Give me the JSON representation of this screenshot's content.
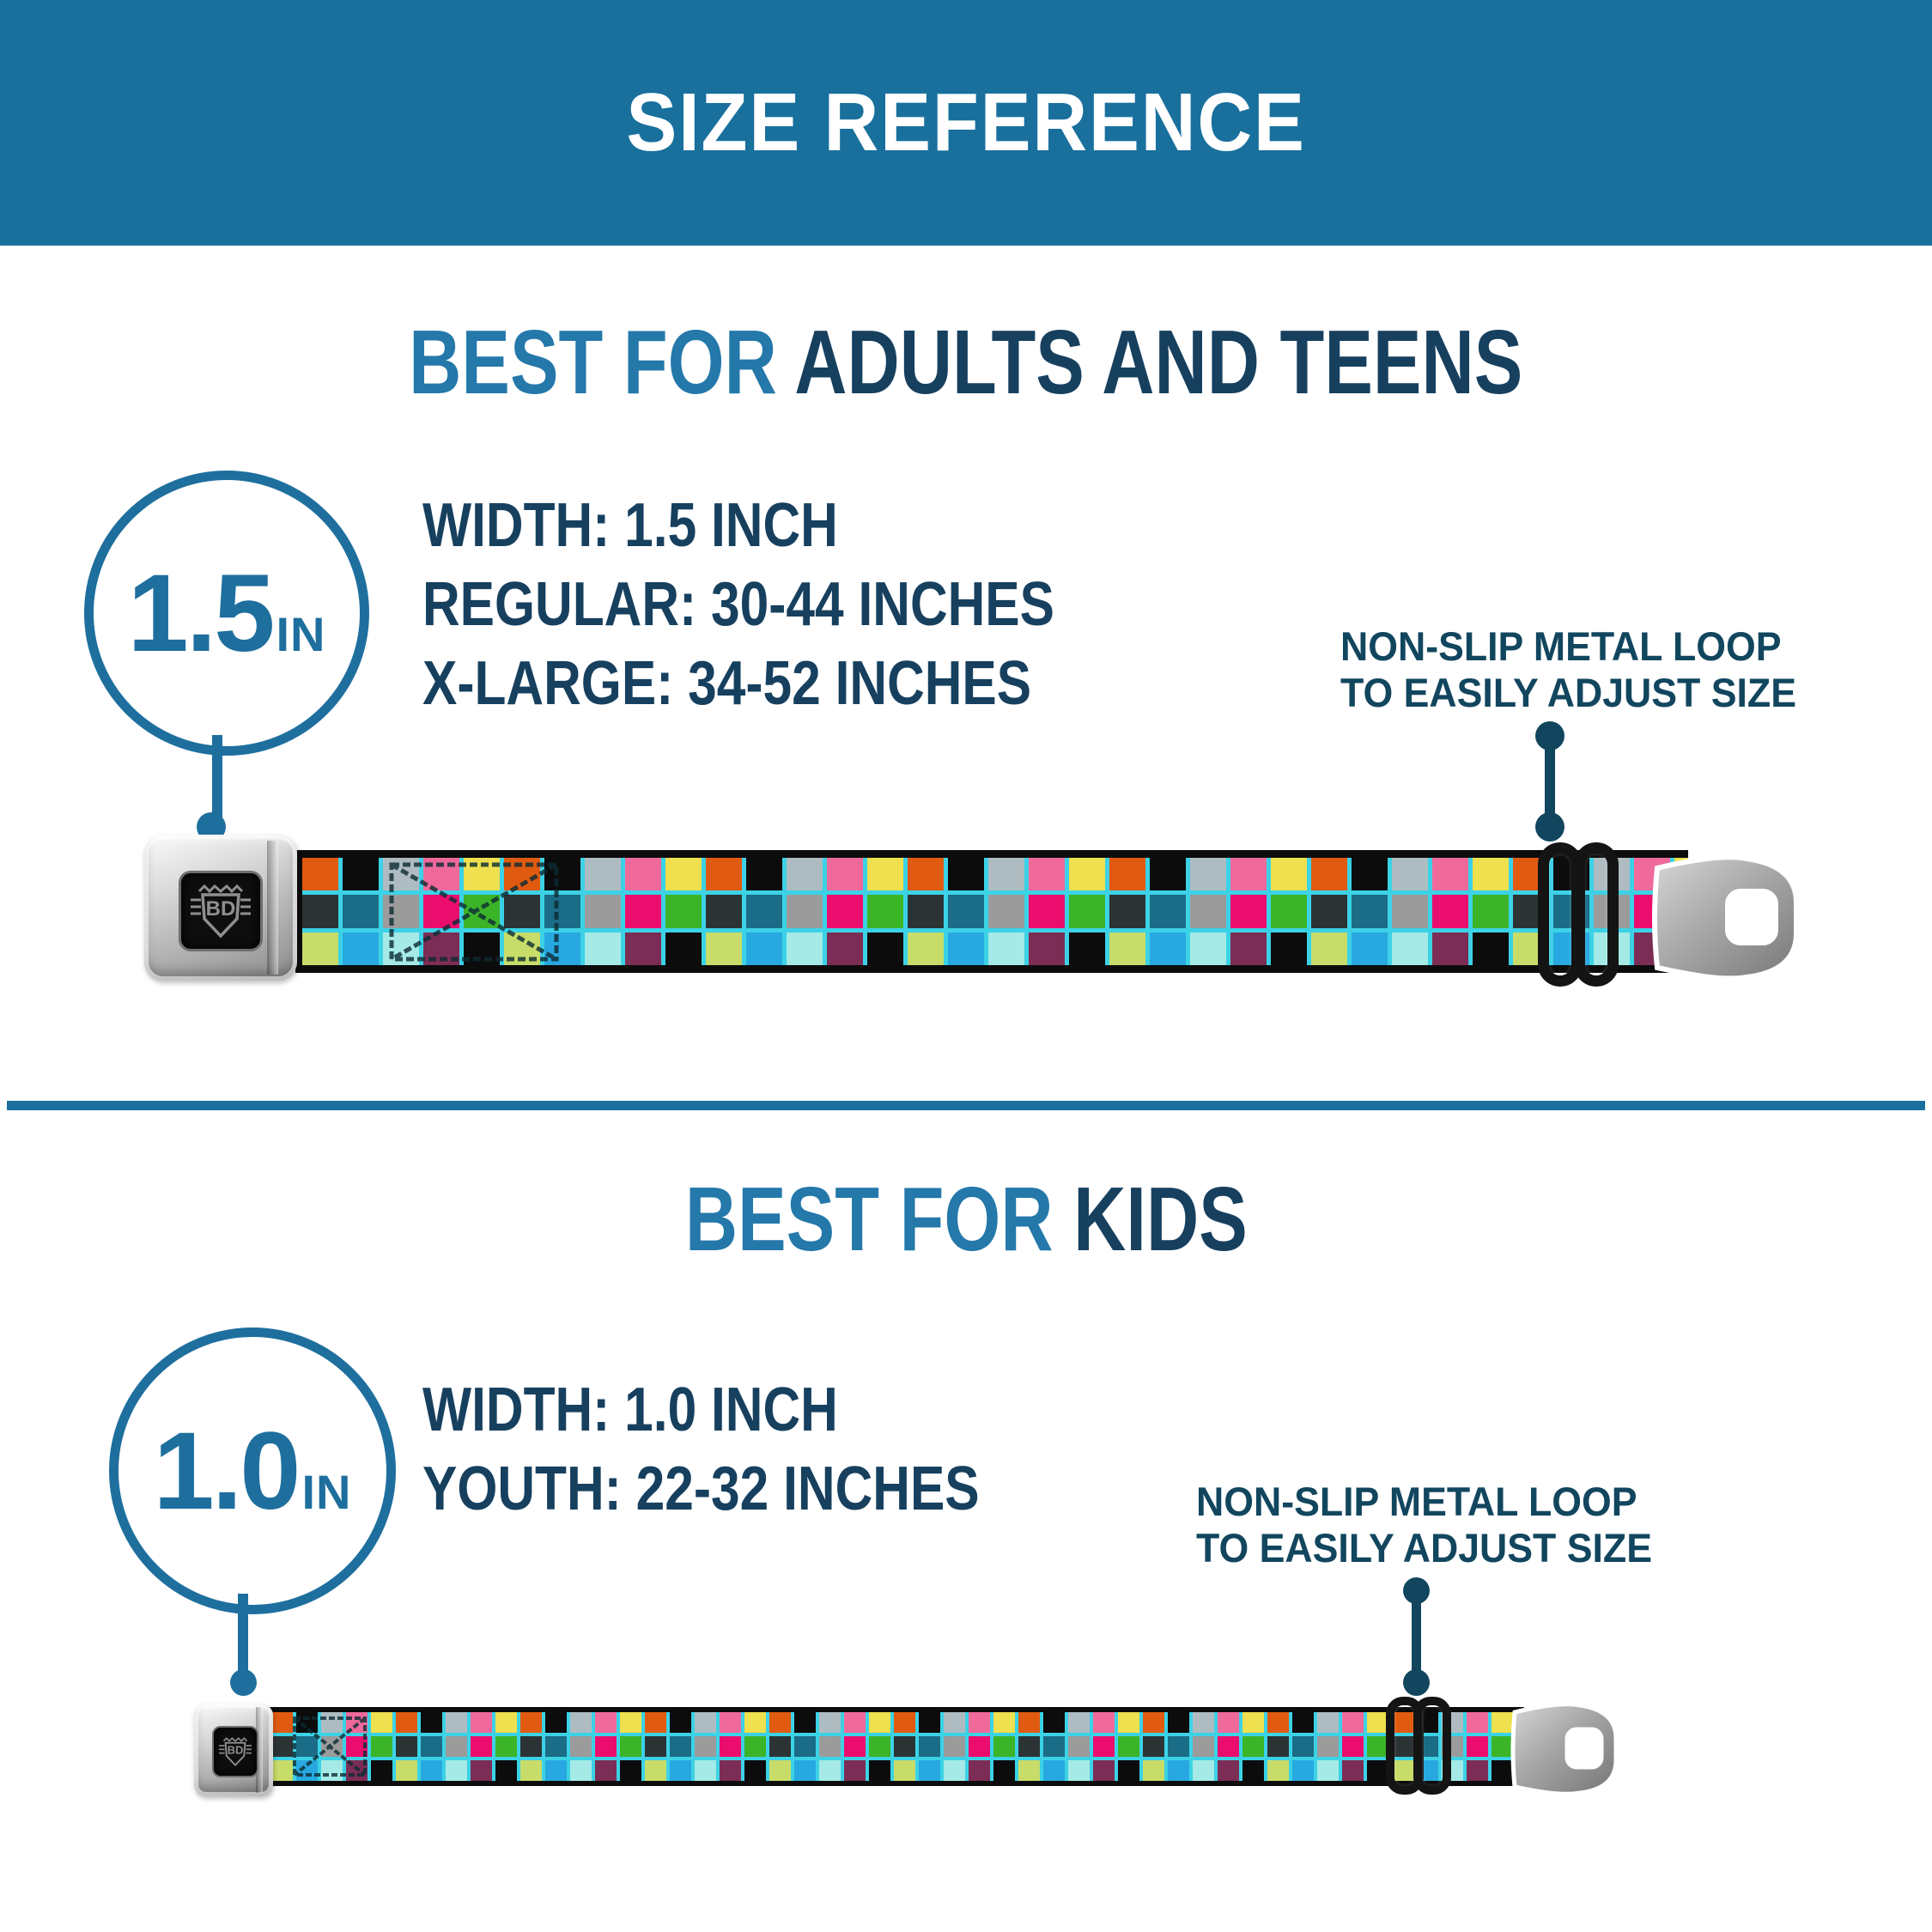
{
  "banner": {
    "title": "SIZE REFERENCE"
  },
  "adults": {
    "heading_highlight": "BEST FOR ",
    "heading_main": "ADULTS AND TEENS",
    "badge_value": "1.5",
    "badge_unit": "IN",
    "specs": [
      "WIDTH: 1.5 INCH",
      "REGULAR: 30-44 INCHES",
      "X-LARGE: 34-52 INCHES"
    ],
    "callout_line1": "NON-SLIP METAL LOOP",
    "callout_line2": "TO EASILY ADJUST SIZE"
  },
  "kids": {
    "heading_highlight": "BEST FOR ",
    "heading_main": "KIDS",
    "badge_value": "1.0",
    "badge_unit": "IN",
    "specs": [
      "WIDTH: 1.0 INCH",
      "YOUTH: 22-32 INCHES"
    ],
    "callout_line1": "NON-SLIP METAL LOOP",
    "callout_line2": "TO EASILY ADJUST SIZE"
  },
  "belt": {
    "buckle_logo_text": "BD",
    "adult_columns": 35,
    "kid_columns": 51,
    "palette": {
      "black": "#0c0c0c",
      "silver": "#aebcc2",
      "pink": "#f0699b",
      "yellow": "#eee04e",
      "orange": "#e05a10",
      "teal": "#1b6c86",
      "gray": "#9b9b9b",
      "magenta": "#eb0d6e",
      "green": "#3bb428",
      "charcoal": "#2c3335",
      "skyblue": "#28a8e0",
      "palecyan": "#a5eae6",
      "plum": "#7c2d55",
      "lime": "#c8dc69"
    },
    "column_cycle": [
      [
        "orange",
        "charcoal",
        "lime"
      ],
      [
        "black",
        "teal",
        "skyblue"
      ],
      [
        "silver",
        "gray",
        "palecyan"
      ],
      [
        "pink",
        "magenta",
        "plum"
      ],
      [
        "yellow",
        "green",
        "black"
      ]
    ]
  },
  "colors": {
    "banner_blue": "#19709d",
    "heading_light_blue": "#2478aa",
    "heading_navy": "#17405f",
    "callout_navy": "#12465f",
    "circle_blue": "#1e6f9e",
    "grid_turquoise": "#3cd2e6",
    "strap_edge_black": "#0c0c0c"
  }
}
